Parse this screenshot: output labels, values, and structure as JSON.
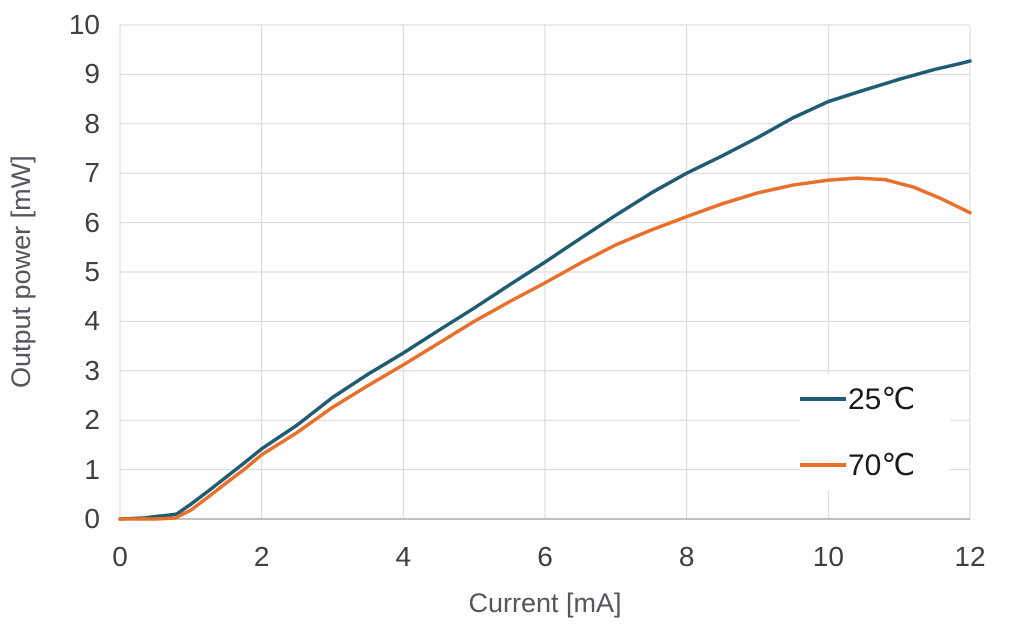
{
  "chart_data": {
    "type": "line",
    "title": "",
    "xlabel": "Current [mA]",
    "ylabel": "Output power [mW]",
    "xlim": [
      0,
      12
    ],
    "ylim": [
      0,
      10
    ],
    "x_ticks": [
      0,
      2,
      4,
      6,
      8,
      10,
      12
    ],
    "y_ticks": [
      0,
      1,
      2,
      3,
      4,
      5,
      6,
      7,
      8,
      9,
      10
    ],
    "grid": true,
    "legend_position": "inside-lower-right",
    "series": [
      {
        "name": "25℃",
        "color": "#1f5b73",
        "x": [
          0,
          0.35,
          0.5,
          0.65,
          0.8,
          1.0,
          1.25,
          1.5,
          1.75,
          2.0,
          2.5,
          3.0,
          3.5,
          4.0,
          4.5,
          5.0,
          5.5,
          6.0,
          6.5,
          7.0,
          7.5,
          8.0,
          8.5,
          9.0,
          9.5,
          10.0,
          10.5,
          11.0,
          11.5,
          11.8,
          12.0
        ],
        "y": [
          0,
          0.02,
          0.05,
          0.07,
          0.1,
          0.3,
          0.57,
          0.85,
          1.13,
          1.42,
          1.9,
          2.46,
          2.93,
          3.36,
          3.82,
          4.27,
          4.74,
          5.2,
          5.68,
          6.15,
          6.6,
          7.0,
          7.35,
          7.72,
          8.12,
          8.45,
          8.68,
          8.9,
          9.1,
          9.2,
          9.27
        ]
      },
      {
        "name": "70℃",
        "color": "#e8702b",
        "x": [
          0,
          0.5,
          0.78,
          1.0,
          1.25,
          1.5,
          1.75,
          2.0,
          2.5,
          3.0,
          3.5,
          4.0,
          4.5,
          5.0,
          5.5,
          6.0,
          6.5,
          7.0,
          7.5,
          8.0,
          8.5,
          9.0,
          9.5,
          10.0,
          10.4,
          10.8,
          11.2,
          11.6,
          12.0
        ],
        "y": [
          0,
          0,
          0.02,
          0.18,
          0.45,
          0.73,
          1.0,
          1.3,
          1.75,
          2.26,
          2.7,
          3.12,
          3.56,
          4.0,
          4.4,
          4.78,
          5.18,
          5.55,
          5.85,
          6.12,
          6.38,
          6.6,
          6.76,
          6.86,
          6.9,
          6.87,
          6.72,
          6.48,
          6.2
        ]
      }
    ]
  },
  "colors": {
    "background": "#ffffff",
    "gridline": "#d9d9d9",
    "plot_border": "#d9d9d9",
    "axis_line": "#ababab",
    "tick_label": "#3f3f46",
    "axis_title": "#55555e",
    "legend_text": "#1a1a1a",
    "series_25c": "#1f5b73",
    "series_70c": "#e8702b"
  }
}
